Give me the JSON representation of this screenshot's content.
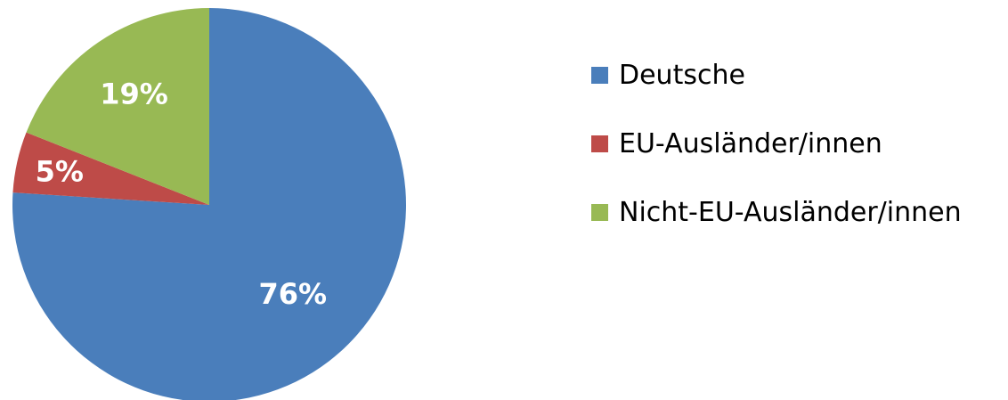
{
  "chart_data": {
    "type": "pie",
    "title": "",
    "start_angle_deg": 0,
    "direction": "clockwise",
    "slices": [
      {
        "name": "Deutsche",
        "value": 76,
        "label": "76%",
        "color": "#4a7ebb"
      },
      {
        "name": "EU-Ausländer/innen",
        "value": 5,
        "label": "5%",
        "color": "#be4b48"
      },
      {
        "name": "Nicht-EU-Ausländer/innen",
        "value": 19,
        "label": "19%",
        "color": "#98b954"
      }
    ],
    "legend": {
      "position": "right",
      "entries": [
        "Deutsche",
        "EU-Ausländer/innen",
        "Nicht-EU-Ausländer/innen"
      ]
    }
  }
}
